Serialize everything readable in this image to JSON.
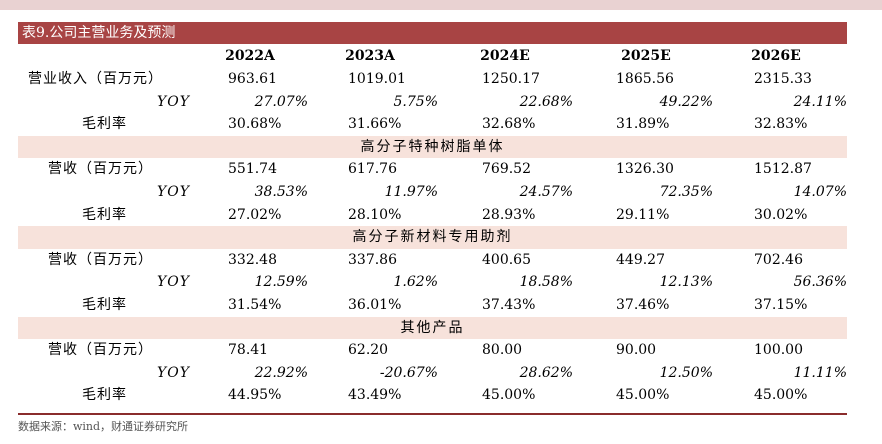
{
  "title": "表9.公司主营业务及预测",
  "header": [
    "2022A",
    "2023A",
    "2024E",
    "2025E",
    "2026E"
  ],
  "rows": [
    {
      "kind": "data",
      "label": "营业收入（百万元）",
      "values": [
        "963.61",
        "1019.01",
        "1250.17",
        "1865.56",
        "2315.33"
      ]
    },
    {
      "kind": "yoy",
      "label": "YOY",
      "values": [
        "27.07%",
        "5.75%",
        "22.68%",
        "49.22%",
        "24.11%"
      ]
    },
    {
      "kind": "data",
      "label": "毛利率",
      "values": [
        "30.68%",
        "31.66%",
        "32.68%",
        "31.89%",
        "32.83%"
      ]
    },
    {
      "kind": "band",
      "label": "高分子特种树脂单体"
    },
    {
      "kind": "data",
      "label": "营收（百万元）",
      "values": [
        "551.74",
        "617.76",
        "769.52",
        "1326.30",
        "1512.87"
      ]
    },
    {
      "kind": "yoy",
      "label": "YOY",
      "values": [
        "38.53%",
        "11.97%",
        "24.57%",
        "72.35%",
        "14.07%"
      ]
    },
    {
      "kind": "data",
      "label": "毛利率",
      "values": [
        "27.02%",
        "28.10%",
        "28.93%",
        "29.11%",
        "30.02%"
      ]
    },
    {
      "kind": "band",
      "label": "高分子新材料专用助剂"
    },
    {
      "kind": "data",
      "label": "营收（百万元）",
      "values": [
        "332.48",
        "337.86",
        "400.65",
        "449.27",
        "702.46"
      ]
    },
    {
      "kind": "yoy",
      "label": "YOY",
      "values": [
        "12.59%",
        "1.62%",
        "18.58%",
        "12.13%",
        "56.36%"
      ]
    },
    {
      "kind": "data",
      "label": "毛利率",
      "values": [
        "31.54%",
        "36.01%",
        "37.43%",
        "37.46%",
        "37.15%"
      ]
    },
    {
      "kind": "band",
      "label": "其他产品"
    },
    {
      "kind": "data",
      "label": "营收（百万元）",
      "values": [
        "78.41",
        "62.20",
        "80.00",
        "90.00",
        "100.00"
      ]
    },
    {
      "kind": "yoy",
      "label": "YOY",
      "values": [
        "22.92%",
        "-20.67%",
        "28.62%",
        "12.50%",
        "11.11%"
      ]
    },
    {
      "kind": "data",
      "label": "毛利率",
      "values": [
        "44.95%",
        "43.49%",
        "45.00%",
        "45.00%",
        "45.00%"
      ]
    }
  ],
  "source": "数据来源：wind，财通证券研究所"
}
